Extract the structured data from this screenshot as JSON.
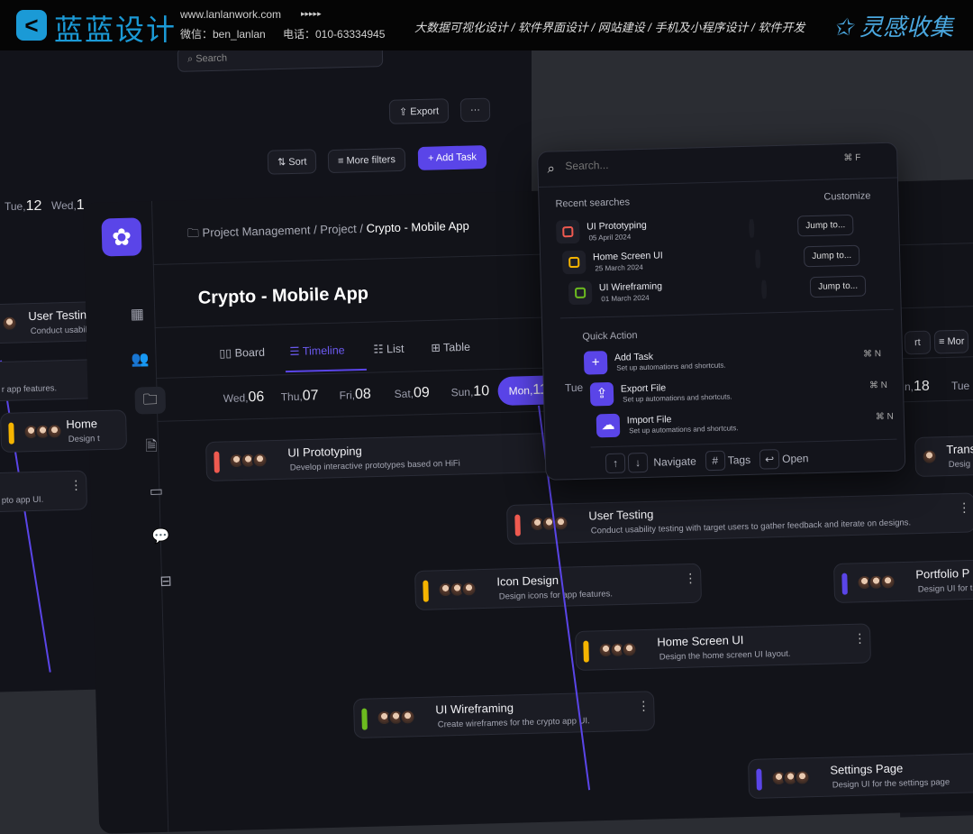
{
  "header": {
    "logo_text": "蓝蓝设计",
    "website": "www.lanlanwork.com",
    "arrows": "▸▸▸▸▸",
    "wechat": "微信：ben_lanlan",
    "phone": "电话：010-63334945",
    "nav": "大数据可视化设计 / 软件界面设计 / 网站建设 / 手机及小程序设计 / 软件开发",
    "right_brand": "灵感收集",
    "brand_color": "#1b9ad6"
  },
  "back_panel": {
    "search_placeholder": "Search",
    "export": "Export",
    "more": "···",
    "sort": "Sort",
    "more_filters": "More filters",
    "add_task": "Add Task",
    "dates": [
      {
        "day": "Tue,",
        "num": "12"
      },
      {
        "day": "Wed,",
        "num": "1"
      }
    ],
    "cards": [
      {
        "title": "User Testing",
        "desc": "Conduct usability te",
        "color": "#ef5a50"
      },
      {
        "title": "",
        "desc": "r app features.",
        "color": "#f5b400"
      },
      {
        "title": "Home",
        "desc": "Design t",
        "color": "#f5b400"
      },
      {
        "title": "",
        "desc": "pto app UI.",
        "color": "#6cbb1f"
      }
    ]
  },
  "breadcrumb": [
    "Project Management",
    "Project",
    "Crypto - Mobile App"
  ],
  "page_title": "Crypto - Mobile App",
  "tabs": [
    {
      "label": "Board",
      "icon": "board-icon"
    },
    {
      "label": "Timeline",
      "icon": "timeline-icon",
      "active": true
    },
    {
      "label": "List",
      "icon": "list-icon"
    },
    {
      "label": "Table",
      "icon": "table-icon"
    }
  ],
  "dates": [
    {
      "day": "Wed,",
      "num": "06"
    },
    {
      "day": "Thu,",
      "num": "07"
    },
    {
      "day": "Fri,",
      "num": "08"
    },
    {
      "day": "Sat,",
      "num": "09"
    },
    {
      "day": "Sun,",
      "num": "10"
    },
    {
      "day": "Mon,",
      "num": "11",
      "active": true
    },
    {
      "day": "Tue",
      "num": ""
    }
  ],
  "accent": "#5a45e8",
  "tasks": [
    {
      "title": "UI Prototyping",
      "desc": "Develop interactive prototypes based on HiFi",
      "color": "#ef5a50"
    },
    {
      "title": "User Testing",
      "desc": "Conduct usability testing with target users to gather feedback and iterate on designs.",
      "color": "#ef5a50"
    },
    {
      "title": "Icon Design",
      "desc": "Design icons for app features.",
      "color": "#f5b400"
    },
    {
      "title": "Portfolio P",
      "desc": "Design UI for t",
      "color": "#5a45e8"
    },
    {
      "title": "Home Screen UI",
      "desc": "Design the home screen UI layout.",
      "color": "#f5b400"
    },
    {
      "title": "UI Wireframing",
      "desc": "Create wireframes for the crypto app UI.",
      "color": "#6cbb1f"
    },
    {
      "title": "Settings Page",
      "desc": "Design UI for the settings page",
      "color": "#5a45e8"
    },
    {
      "title": "Trans",
      "desc": "Desig",
      "color": "#5a45e8"
    }
  ],
  "right_panel": {
    "export_partial": "rt",
    "more_partial": "Mor",
    "date1": "n,",
    "date1_num": "18",
    "date2": "Tue"
  },
  "palette": {
    "placeholder": "Search...",
    "search_shortcut": "⌘ F",
    "recent_label": "Recent searches",
    "customize": "Customize",
    "recent": [
      {
        "title": "UI Prototyping",
        "date": "05 April 2024",
        "color": "#ef5a50",
        "jump": "Jump to..."
      },
      {
        "title": "Home Screen UI",
        "date": "25 March 2024",
        "color": "#f5b400",
        "jump": "Jump to..."
      },
      {
        "title": "UI Wireframing",
        "date": "01 March 2024",
        "color": "#6cbb1f",
        "jump": "Jump to..."
      }
    ],
    "quick_label": "Quick Action",
    "actions": [
      {
        "title": "Add Task",
        "desc": "Set up automations and shortcuts.",
        "shortcut": "⌘ N",
        "icon": "+"
      },
      {
        "title": "Export File",
        "desc": "Set up automations and shortcuts.",
        "shortcut": "⌘ N",
        "icon": "⇪"
      },
      {
        "title": "Import File",
        "desc": "Set up automations and shortcuts.",
        "shortcut": "⌘ N",
        "icon": "☁"
      }
    ],
    "footer": {
      "up": "↑",
      "down": "↓",
      "navigate": "Navigate",
      "tags_icon": "#",
      "tags": "Tags",
      "open_icon": "↩",
      "open": "Open"
    }
  }
}
